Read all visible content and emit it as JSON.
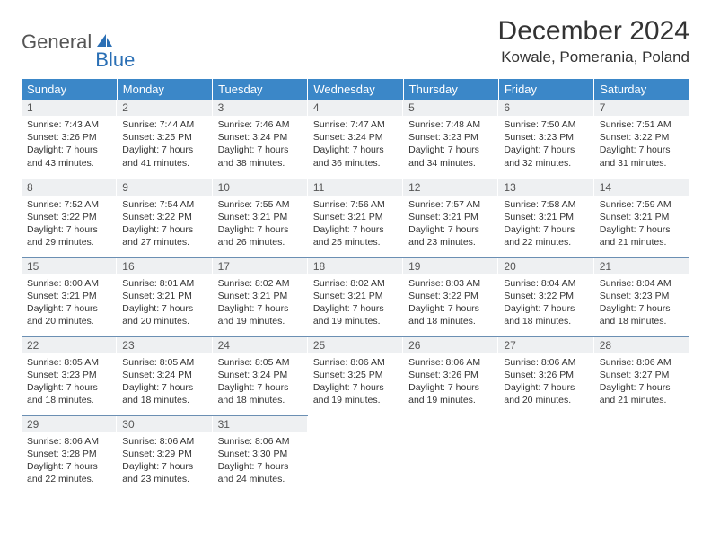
{
  "logo": {
    "word1": "General",
    "word2": "Blue"
  },
  "title": "December 2024",
  "location": "Kowale, Pomerania, Poland",
  "colors": {
    "header_bg": "#3b87c8",
    "header_text": "#ffffff",
    "daynum_bg": "#eef0f2",
    "row_divider": "#6b8fb3",
    "logo_accent": "#2a6fb5",
    "logo_gray": "#555555"
  },
  "weekdays": [
    "Sunday",
    "Monday",
    "Tuesday",
    "Wednesday",
    "Thursday",
    "Friday",
    "Saturday"
  ],
  "weeks": [
    [
      {
        "n": "1",
        "sr": "7:43 AM",
        "ss": "3:26 PM",
        "dl": "7 hours and 43 minutes."
      },
      {
        "n": "2",
        "sr": "7:44 AM",
        "ss": "3:25 PM",
        "dl": "7 hours and 41 minutes."
      },
      {
        "n": "3",
        "sr": "7:46 AM",
        "ss": "3:24 PM",
        "dl": "7 hours and 38 minutes."
      },
      {
        "n": "4",
        "sr": "7:47 AM",
        "ss": "3:24 PM",
        "dl": "7 hours and 36 minutes."
      },
      {
        "n": "5",
        "sr": "7:48 AM",
        "ss": "3:23 PM",
        "dl": "7 hours and 34 minutes."
      },
      {
        "n": "6",
        "sr": "7:50 AM",
        "ss": "3:23 PM",
        "dl": "7 hours and 32 minutes."
      },
      {
        "n": "7",
        "sr": "7:51 AM",
        "ss": "3:22 PM",
        "dl": "7 hours and 31 minutes."
      }
    ],
    [
      {
        "n": "8",
        "sr": "7:52 AM",
        "ss": "3:22 PM",
        "dl": "7 hours and 29 minutes."
      },
      {
        "n": "9",
        "sr": "7:54 AM",
        "ss": "3:22 PM",
        "dl": "7 hours and 27 minutes."
      },
      {
        "n": "10",
        "sr": "7:55 AM",
        "ss": "3:21 PM",
        "dl": "7 hours and 26 minutes."
      },
      {
        "n": "11",
        "sr": "7:56 AM",
        "ss": "3:21 PM",
        "dl": "7 hours and 25 minutes."
      },
      {
        "n": "12",
        "sr": "7:57 AM",
        "ss": "3:21 PM",
        "dl": "7 hours and 23 minutes."
      },
      {
        "n": "13",
        "sr": "7:58 AM",
        "ss": "3:21 PM",
        "dl": "7 hours and 22 minutes."
      },
      {
        "n": "14",
        "sr": "7:59 AM",
        "ss": "3:21 PM",
        "dl": "7 hours and 21 minutes."
      }
    ],
    [
      {
        "n": "15",
        "sr": "8:00 AM",
        "ss": "3:21 PM",
        "dl": "7 hours and 20 minutes."
      },
      {
        "n": "16",
        "sr": "8:01 AM",
        "ss": "3:21 PM",
        "dl": "7 hours and 20 minutes."
      },
      {
        "n": "17",
        "sr": "8:02 AM",
        "ss": "3:21 PM",
        "dl": "7 hours and 19 minutes."
      },
      {
        "n": "18",
        "sr": "8:02 AM",
        "ss": "3:21 PM",
        "dl": "7 hours and 19 minutes."
      },
      {
        "n": "19",
        "sr": "8:03 AM",
        "ss": "3:22 PM",
        "dl": "7 hours and 18 minutes."
      },
      {
        "n": "20",
        "sr": "8:04 AM",
        "ss": "3:22 PM",
        "dl": "7 hours and 18 minutes."
      },
      {
        "n": "21",
        "sr": "8:04 AM",
        "ss": "3:23 PM",
        "dl": "7 hours and 18 minutes."
      }
    ],
    [
      {
        "n": "22",
        "sr": "8:05 AM",
        "ss": "3:23 PM",
        "dl": "7 hours and 18 minutes."
      },
      {
        "n": "23",
        "sr": "8:05 AM",
        "ss": "3:24 PM",
        "dl": "7 hours and 18 minutes."
      },
      {
        "n": "24",
        "sr": "8:05 AM",
        "ss": "3:24 PM",
        "dl": "7 hours and 18 minutes."
      },
      {
        "n": "25",
        "sr": "8:06 AM",
        "ss": "3:25 PM",
        "dl": "7 hours and 19 minutes."
      },
      {
        "n": "26",
        "sr": "8:06 AM",
        "ss": "3:26 PM",
        "dl": "7 hours and 19 minutes."
      },
      {
        "n": "27",
        "sr": "8:06 AM",
        "ss": "3:26 PM",
        "dl": "7 hours and 20 minutes."
      },
      {
        "n": "28",
        "sr": "8:06 AM",
        "ss": "3:27 PM",
        "dl": "7 hours and 21 minutes."
      }
    ],
    [
      {
        "n": "29",
        "sr": "8:06 AM",
        "ss": "3:28 PM",
        "dl": "7 hours and 22 minutes."
      },
      {
        "n": "30",
        "sr": "8:06 AM",
        "ss": "3:29 PM",
        "dl": "7 hours and 23 minutes."
      },
      {
        "n": "31",
        "sr": "8:06 AM",
        "ss": "3:30 PM",
        "dl": "7 hours and 24 minutes."
      },
      null,
      null,
      null,
      null
    ]
  ],
  "labels": {
    "sunrise": "Sunrise:",
    "sunset": "Sunset:",
    "daylight": "Daylight:"
  }
}
